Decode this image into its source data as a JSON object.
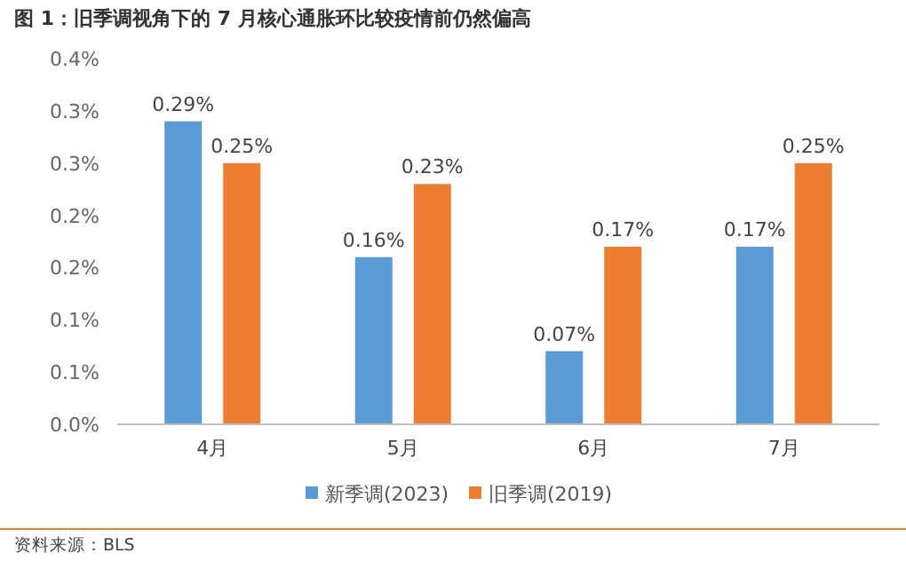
{
  "chart_data": {
    "type": "bar",
    "title": "图 1：旧季调视角下的 7 月核心通胀环比较疫情前仍然偏高",
    "categories": [
      "4月",
      "5月",
      "6月",
      "7月"
    ],
    "series": [
      {
        "name": "新季调(2023)",
        "color": "#5b9bd5",
        "values": [
          0.29,
          0.16,
          0.07,
          0.17
        ],
        "value_labels": [
          "0.29%",
          "0.16%",
          "0.07%",
          "0.17%"
        ]
      },
      {
        "name": "旧季调(2019)",
        "color": "#ed7d31",
        "values": [
          0.25,
          0.23,
          0.17,
          0.25
        ],
        "value_labels": [
          "0.25%",
          "0.23%",
          "0.17%",
          "0.25%"
        ]
      }
    ],
    "ylim": [
      0,
      0.35
    ],
    "yticks": [
      {
        "value": 0,
        "label": "0.0%"
      },
      {
        "value": 0.05,
        "label": "0.1%"
      },
      {
        "value": 0.1,
        "label": "0.1%"
      },
      {
        "value": 0.15,
        "label": "0.2%"
      },
      {
        "value": 0.2,
        "label": "0.2%"
      },
      {
        "value": 0.25,
        "label": "0.3%"
      },
      {
        "value": 0.3,
        "label": "0.3%"
      },
      {
        "value": 0.35,
        "label": "0.4%"
      }
    ],
    "grid": false,
    "legend": "bottom",
    "annotations": [
      "资料来源：BLS"
    ]
  }
}
